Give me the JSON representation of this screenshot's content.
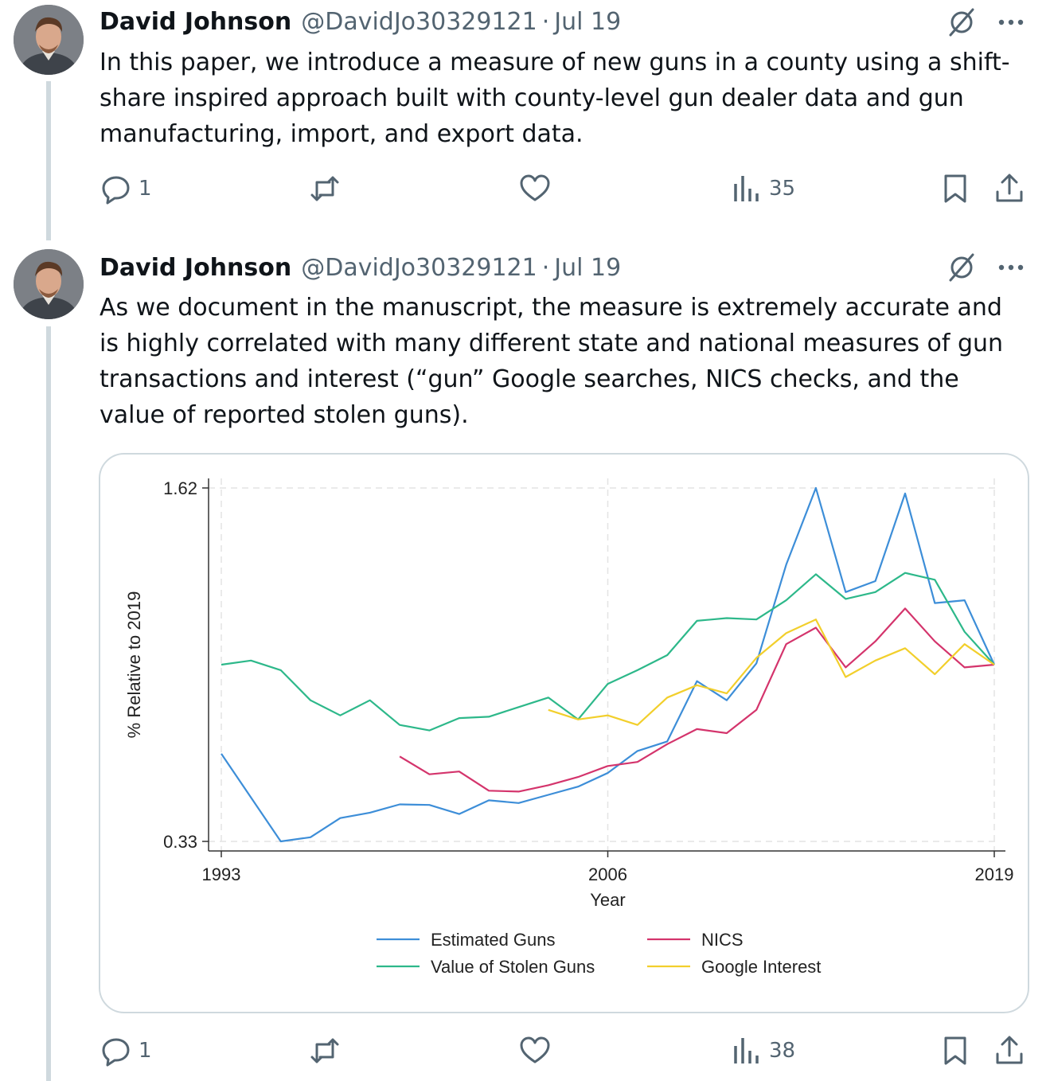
{
  "tweets": [
    {
      "author": "David Johnson",
      "handle": "@DavidJo30329121",
      "separator": "·",
      "date": "Jul 19",
      "text": "In this paper, we introduce a measure of new guns in a county using a shift-share inspired approach built with county-level gun dealer data and gun manufacturing, import, and export data.",
      "replies": "1",
      "views": "35"
    },
    {
      "author": "David Johnson",
      "handle": "@DavidJo30329121",
      "separator": "·",
      "date": "Jul 19",
      "text": "As we document in the manuscript, the measure is extremely accurate and is highly correlated with many different state and national measures of gun transactions and interest (“gun” Google searches, NICS checks, and the value of reported stolen guns).",
      "replies": "1",
      "views": "38"
    }
  ],
  "chart_data": {
    "type": "line",
    "title": "",
    "xlabel": "Year",
    "ylabel": "% Relative to 2019",
    "xlim": [
      1993,
      2019
    ],
    "ylim": [
      0.33,
      1.62
    ],
    "x_ticks": [
      "1993",
      "2006",
      "2019"
    ],
    "y_ticks": [
      "0.33",
      "1.62"
    ],
    "grid": true,
    "legend": "bottom",
    "series": [
      {
        "name": "Estimated Guns",
        "color": "#3d8ed8",
        "x": [
          1993,
          1994,
          1995,
          1996,
          1997,
          1998,
          1999,
          2000,
          2001,
          2002,
          2003,
          2004,
          2005,
          2006,
          2007,
          2008,
          2009,
          2010,
          2011,
          2012,
          2013,
          2014,
          2015,
          2016,
          2017,
          2018,
          2019
        ],
        "y": [
          0.65,
          0.49,
          0.33,
          0.345,
          0.415,
          0.435,
          0.465,
          0.463,
          0.43,
          0.48,
          0.47,
          0.5,
          0.53,
          0.58,
          0.66,
          0.695,
          0.915,
          0.845,
          0.98,
          1.34,
          1.62,
          1.24,
          1.28,
          1.6,
          1.2,
          1.21,
          0.975
        ]
      },
      {
        "name": "Value of Stolen Guns",
        "color": "#2db88a",
        "x": [
          1993,
          1994,
          1995,
          1996,
          1997,
          1998,
          1999,
          2000,
          2001,
          2002,
          2003,
          2004,
          2005,
          2006,
          2007,
          2008,
          2009,
          2010,
          2011,
          2012,
          2013,
          2014,
          2015,
          2016,
          2017,
          2018,
          2019
        ],
        "y": [
          0.975,
          0.99,
          0.955,
          0.845,
          0.79,
          0.845,
          0.755,
          0.735,
          0.78,
          0.785,
          0.82,
          0.855,
          0.775,
          0.905,
          0.955,
          1.01,
          1.135,
          1.145,
          1.14,
          1.21,
          1.305,
          1.215,
          1.24,
          1.31,
          1.285,
          1.095,
          0.975
        ]
      },
      {
        "name": "NICS",
        "color": "#d4346c",
        "x": [
          1999,
          2000,
          2001,
          2002,
          2003,
          2004,
          2005,
          2006,
          2007,
          2008,
          2009,
          2010,
          2011,
          2012,
          2013,
          2014,
          2015,
          2016,
          2017,
          2018,
          2019
        ],
        "y": [
          0.64,
          0.575,
          0.585,
          0.515,
          0.512,
          0.535,
          0.565,
          0.605,
          0.62,
          0.685,
          0.74,
          0.725,
          0.81,
          1.05,
          1.11,
          0.965,
          1.06,
          1.18,
          1.06,
          0.965,
          0.975
        ]
      },
      {
        "name": "Google Interest",
        "color": "#f2cf2c",
        "x": [
          2004,
          2005,
          2006,
          2007,
          2008,
          2009,
          2010,
          2011,
          2012,
          2013,
          2014,
          2015,
          2016,
          2017,
          2018,
          2019
        ],
        "y": [
          0.81,
          0.775,
          0.79,
          0.755,
          0.855,
          0.9,
          0.87,
          1.0,
          1.09,
          1.14,
          0.93,
          0.99,
          1.035,
          0.94,
          1.05,
          0.975
        ]
      }
    ]
  }
}
